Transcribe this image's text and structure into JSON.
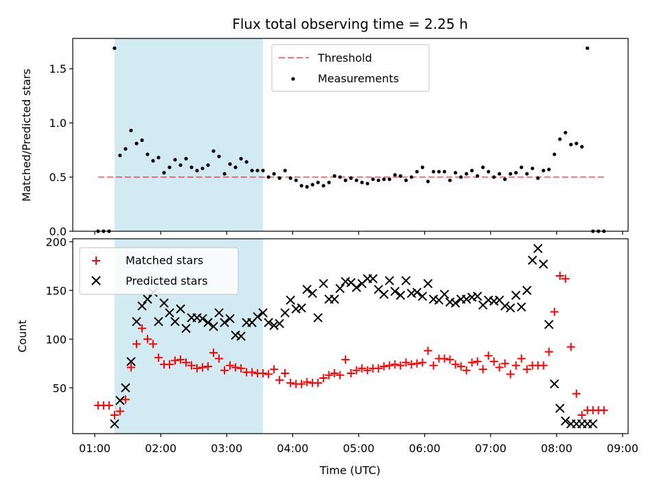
{
  "chart_data": [
    {
      "type": "scatter",
      "title": "Flux total observing time = 2.25 h",
      "xlabel": "",
      "ylabel": "Matched/Predicted stars",
      "xlim": [
        "00:40",
        "09:05"
      ],
      "ylim": [
        0,
        1.78
      ],
      "yticks": [
        0.0,
        0.5,
        1.0,
        1.5
      ],
      "yticklabels": [
        "0.0",
        "0.5",
        "1.0",
        "1.5"
      ],
      "shaded_span": [
        "01:18",
        "03:33"
      ],
      "shaded_color": "#add8e6",
      "legend_position": "upper center",
      "threshold": {
        "name": "Threshold",
        "value": 0.5,
        "x_start": "01:03",
        "x_end": "08:43",
        "color": "#ff0000",
        "style": "dashed"
      },
      "series": [
        {
          "name": "Measurements",
          "color": "#000000",
          "marker": "dot",
          "x": [
            "01:03",
            "01:08",
            "01:13",
            "01:18",
            "01:23",
            "01:28",
            "01:33",
            "01:38",
            "01:43",
            "01:48",
            "01:53",
            "01:58",
            "02:03",
            "02:08",
            "02:13",
            "02:18",
            "02:23",
            "02:28",
            "02:33",
            "02:38",
            "02:43",
            "02:48",
            "02:53",
            "02:58",
            "03:03",
            "03:08",
            "03:13",
            "03:18",
            "03:23",
            "03:28",
            "03:33",
            "03:38",
            "03:43",
            "03:48",
            "03:53",
            "03:58",
            "04:03",
            "04:08",
            "04:13",
            "04:18",
            "04:23",
            "04:28",
            "04:33",
            "04:38",
            "04:43",
            "04:48",
            "04:53",
            "04:58",
            "05:03",
            "05:08",
            "05:13",
            "05:18",
            "05:23",
            "05:28",
            "05:33",
            "05:38",
            "05:43",
            "05:48",
            "05:53",
            "05:58",
            "06:03",
            "06:08",
            "06:13",
            "06:18",
            "06:23",
            "06:28",
            "06:33",
            "06:38",
            "06:43",
            "06:48",
            "06:53",
            "06:58",
            "07:03",
            "07:08",
            "07:13",
            "07:18",
            "07:23",
            "07:28",
            "07:33",
            "07:38",
            "07:43",
            "07:48",
            "07:53",
            "07:58",
            "08:03",
            "08:08",
            "08:13",
            "08:18",
            "08:23",
            "08:28",
            "08:33",
            "08:38",
            "08:43"
          ],
          "y": [
            0.0,
            0.0,
            0.0,
            1.69,
            0.7,
            0.76,
            0.93,
            0.81,
            0.84,
            0.71,
            0.65,
            0.68,
            0.54,
            0.59,
            0.66,
            0.61,
            0.67,
            0.59,
            0.56,
            0.58,
            0.61,
            0.74,
            0.69,
            0.53,
            0.62,
            0.59,
            0.67,
            0.64,
            0.56,
            0.56,
            0.56,
            0.5,
            0.53,
            0.49,
            0.56,
            0.49,
            0.47,
            0.42,
            0.41,
            0.43,
            0.45,
            0.42,
            0.45,
            0.51,
            0.5,
            0.47,
            0.49,
            0.47,
            0.45,
            0.44,
            0.48,
            0.47,
            0.48,
            0.48,
            0.52,
            0.51,
            0.47,
            0.5,
            0.55,
            0.59,
            0.46,
            0.55,
            0.55,
            0.55,
            0.47,
            0.54,
            0.5,
            0.53,
            0.56,
            0.51,
            0.59,
            0.55,
            0.5,
            0.53,
            0.48,
            0.53,
            0.54,
            0.59,
            0.53,
            0.58,
            0.49,
            0.56,
            0.57,
            0.71,
            0.85,
            0.91,
            0.8,
            0.81,
            0.78,
            1.69,
            0.0,
            0.0,
            0.0
          ]
        }
      ]
    },
    {
      "type": "scatter",
      "title": "",
      "xlabel": "Time (UTC)",
      "ylabel": "Count",
      "xlim": [
        "00:40",
        "09:05"
      ],
      "ylim": [
        3,
        203
      ],
      "yticks": [
        50,
        100,
        150,
        200
      ],
      "yticklabels": [
        "50",
        "100",
        "150",
        "200"
      ],
      "xticks": [
        "01:00",
        "02:00",
        "03:00",
        "04:00",
        "05:00",
        "06:00",
        "07:00",
        "08:00",
        "09:00"
      ],
      "shaded_span": [
        "01:18",
        "03:33"
      ],
      "shaded_color": "#add8e6",
      "legend_position": "upper left",
      "series": [
        {
          "name": "Matched stars",
          "color": "#ff0000",
          "marker": "plus",
          "x": [
            "01:03",
            "01:08",
            "01:13",
            "01:18",
            "01:23",
            "01:28",
            "01:33",
            "01:38",
            "01:43",
            "01:48",
            "01:53",
            "01:58",
            "02:03",
            "02:08",
            "02:13",
            "02:18",
            "02:23",
            "02:28",
            "02:33",
            "02:38",
            "02:43",
            "02:48",
            "02:53",
            "02:58",
            "03:03",
            "03:08",
            "03:13",
            "03:18",
            "03:23",
            "03:28",
            "03:33",
            "03:38",
            "03:43",
            "03:48",
            "03:53",
            "03:58",
            "04:03",
            "04:08",
            "04:13",
            "04:18",
            "04:23",
            "04:28",
            "04:33",
            "04:38",
            "04:43",
            "04:48",
            "04:53",
            "04:58",
            "05:03",
            "05:08",
            "05:13",
            "05:18",
            "05:23",
            "05:28",
            "05:33",
            "05:38",
            "05:43",
            "05:48",
            "05:53",
            "05:58",
            "06:03",
            "06:08",
            "06:13",
            "06:18",
            "06:23",
            "06:28",
            "06:33",
            "06:38",
            "06:43",
            "06:48",
            "06:53",
            "06:58",
            "07:03",
            "07:08",
            "07:13",
            "07:18",
            "07:23",
            "07:28",
            "07:33",
            "07:38",
            "07:43",
            "07:48",
            "07:53",
            "07:58",
            "08:03",
            "08:08",
            "08:13",
            "08:18",
            "08:23",
            "08:28",
            "08:33",
            "08:38",
            "08:43"
          ],
          "y": [
            32,
            32,
            32,
            22,
            26,
            38,
            71,
            95,
            111,
            100,
            95,
            81,
            74,
            74,
            78,
            79,
            76,
            73,
            70,
            71,
            72,
            86,
            80,
            68,
            73,
            71,
            70,
            66,
            66,
            65,
            65,
            64,
            69,
            58,
            65,
            55,
            54,
            54,
            56,
            55,
            55,
            60,
            63,
            65,
            63,
            79,
            65,
            68,
            70,
            68,
            70,
            70,
            72,
            73,
            74,
            73,
            76,
            74,
            75,
            76,
            88,
            73,
            80,
            80,
            79,
            74,
            72,
            68,
            76,
            77,
            69,
            83,
            77,
            71,
            75,
            64,
            73,
            80,
            69,
            73,
            73,
            73,
            87,
            128,
            165,
            162,
            92,
            44,
            22,
            27,
            27,
            27,
            27
          ]
        },
        {
          "name": "Predicted stars",
          "color": "#000000",
          "marker": "x",
          "x": [
            "01:18",
            "01:23",
            "01:28",
            "01:33",
            "01:38",
            "01:43",
            "01:48",
            "01:53",
            "01:58",
            "02:03",
            "02:08",
            "02:13",
            "02:18",
            "02:23",
            "02:28",
            "02:33",
            "02:38",
            "02:43",
            "02:48",
            "02:53",
            "02:58",
            "03:03",
            "03:08",
            "03:13",
            "03:18",
            "03:23",
            "03:28",
            "03:33",
            "03:38",
            "03:43",
            "03:48",
            "03:53",
            "03:58",
            "04:03",
            "04:08",
            "04:13",
            "04:18",
            "04:23",
            "04:28",
            "04:33",
            "04:38",
            "04:43",
            "04:48",
            "04:53",
            "04:58",
            "05:03",
            "05:08",
            "05:13",
            "05:18",
            "05:23",
            "05:28",
            "05:33",
            "05:38",
            "05:43",
            "05:48",
            "05:53",
            "05:58",
            "06:03",
            "06:08",
            "06:13",
            "06:18",
            "06:23",
            "06:28",
            "06:33",
            "06:38",
            "06:43",
            "06:48",
            "06:53",
            "06:58",
            "07:03",
            "07:08",
            "07:13",
            "07:18",
            "07:23",
            "07:28",
            "07:33",
            "07:38",
            "07:43",
            "07:48",
            "07:53",
            "07:58",
            "08:03",
            "08:08",
            "08:13",
            "08:18",
            "08:23",
            "08:28",
            "08:33"
          ],
          "y": [
            13,
            37,
            50,
            77,
            118,
            134,
            141,
            148,
            118,
            137,
            127,
            118,
            131,
            111,
            122,
            122,
            121,
            117,
            113,
            127,
            117,
            121,
            104,
            103,
            117,
            117,
            123,
            127,
            117,
            114,
            116,
            127,
            140,
            131,
            132,
            151,
            147,
            122,
            157,
            141,
            141,
            152,
            159,
            158,
            153,
            157,
            162,
            162,
            151,
            146,
            160,
            149,
            145,
            160,
            147,
            148,
            144,
            157,
            141,
            140,
            146,
            138,
            137,
            141,
            141,
            143,
            144,
            135,
            140,
            139,
            140,
            134,
            132,
            145,
            133,
            150,
            181,
            193,
            177,
            115,
            54,
            29,
            16,
            13,
            13,
            13,
            13,
            13
          ]
        }
      ]
    }
  ]
}
